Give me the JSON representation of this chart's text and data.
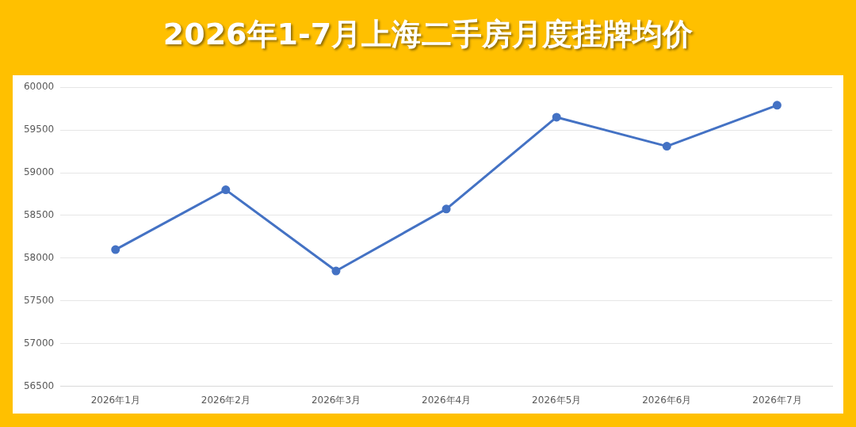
{
  "chart_data": {
    "type": "line",
    "title": "2026年1-7月上海二手房月度挂牌均价",
    "categories": [
      "2026年1月",
      "2026年2月",
      "2026年3月",
      "2026年4月",
      "2026年5月",
      "2026年6月",
      "2026年7月"
    ],
    "series": [
      {
        "color": "#4472c4",
        "values": [
          58100,
          58800,
          57850,
          58575,
          59650,
          59310,
          59790
        ]
      }
    ],
    "ylim": [
      56500,
      60000
    ],
    "yticks": [
      56500,
      57000,
      57500,
      58000,
      58500,
      59000,
      59500,
      60000
    ],
    "grid": "y",
    "marker": "circle",
    "line_style": "solid",
    "legend": false
  }
}
